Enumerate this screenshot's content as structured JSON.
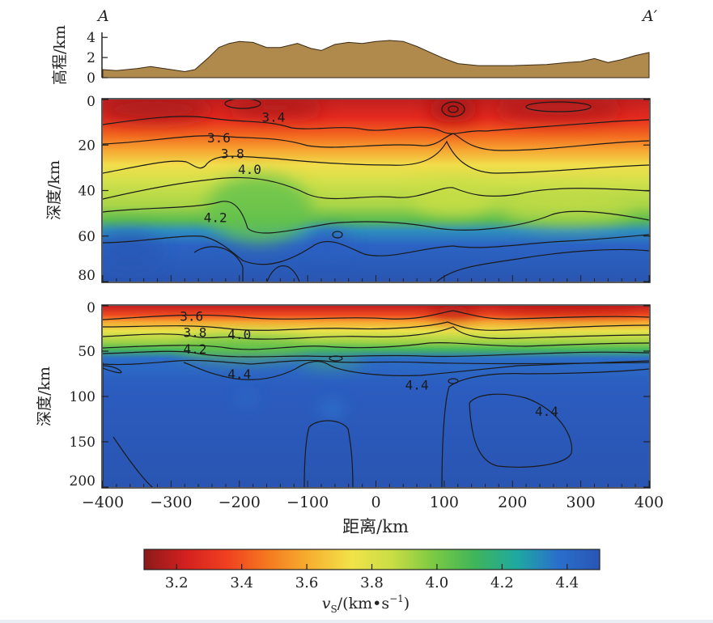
{
  "chart_data": {
    "type": "heatmap",
    "section": {
      "start_label": "A",
      "end_label": "A′"
    },
    "x_axis": {
      "label": "距离/km",
      "range": [
        -400,
        400
      ],
      "ticks": [
        -400,
        -300,
        -200,
        -100,
        0,
        100,
        200,
        300,
        400
      ],
      "tick_labels": [
        "−400",
        "−300",
        "−200",
        "−100",
        "0",
        "100",
        "200",
        "300",
        "400"
      ]
    },
    "topography": {
      "ylabel": "高程/km",
      "ylim": [
        0,
        4.5
      ],
      "ticks": [
        0,
        2,
        4
      ],
      "fill_color": "#b08a4c",
      "x": [
        -400,
        -380,
        -350,
        -330,
        -300,
        -280,
        -265,
        -245,
        -230,
        -215,
        -200,
        -180,
        -160,
        -140,
        -115,
        -95,
        -80,
        -60,
        -40,
        -20,
        0,
        20,
        40,
        60,
        80,
        100,
        120,
        150,
        200,
        250,
        280,
        300,
        320,
        340,
        360,
        380,
        400
      ],
      "elevation_km": [
        0.8,
        0.7,
        0.9,
        1.1,
        0.8,
        0.6,
        0.8,
        2.0,
        3.0,
        3.4,
        3.6,
        3.5,
        3.0,
        3.0,
        3.4,
        2.9,
        2.7,
        3.3,
        3.5,
        3.4,
        3.6,
        3.7,
        3.6,
        3.1,
        2.5,
        1.9,
        1.4,
        1.2,
        1.2,
        1.3,
        1.5,
        1.6,
        1.9,
        1.5,
        1.8,
        2.2,
        2.5
      ]
    },
    "panels": [
      {
        "name": "upper",
        "ylabel": "深度/km",
        "ylim": [
          80,
          0
        ],
        "y_ticks": [
          0,
          20,
          40,
          60,
          80
        ],
        "contour_labels": [
          {
            "text": "3.4",
            "x": -150,
            "y": 8
          },
          {
            "text": "3.6",
            "x": -230,
            "y": 17
          },
          {
            "text": "3.8",
            "x": -210,
            "y": 24
          },
          {
            "text": "4.0",
            "x": -185,
            "y": 31
          },
          {
            "text": "4.2",
            "x": -235,
            "y": 52
          }
        ]
      },
      {
        "name": "lower",
        "ylabel": "深度/km",
        "ylim": [
          200,
          0
        ],
        "y_ticks": [
          0,
          50,
          100,
          150,
          200
        ],
        "contour_labels": [
          {
            "text": "3.6",
            "x": -270,
            "y": 12
          },
          {
            "text": "3.8",
            "x": -265,
            "y": 30
          },
          {
            "text": "4.0",
            "x": -200,
            "y": 32
          },
          {
            "text": "4.2",
            "x": -265,
            "y": 48
          },
          {
            "text": "4.4",
            "x": -200,
            "y": 76
          },
          {
            "text": "4.4",
            "x": 60,
            "y": 88
          },
          {
            "text": "4.4",
            "x": 250,
            "y": 117
          }
        ]
      }
    ],
    "colorbar": {
      "label_main": "v",
      "label_sub": "S",
      "label_unit": "/(km•s",
      "label_exp": "−1",
      "label_close": ")",
      "range": [
        3.1,
        4.5
      ],
      "ticks": [
        3.2,
        3.4,
        3.6,
        3.8,
        4.0,
        4.2,
        4.4
      ],
      "tick_labels": [
        "3.2",
        "3.4",
        "3.6",
        "3.8",
        "4.0",
        "4.2",
        "4.4"
      ],
      "colors": [
        "#8b1a1a",
        "#d42020",
        "#f04020",
        "#f57a20",
        "#f7b030",
        "#f2e34a",
        "#c9dd44",
        "#7ac943",
        "#3fb55a",
        "#1fa9a0",
        "#2a6fcc",
        "#2a55b4"
      ]
    }
  }
}
